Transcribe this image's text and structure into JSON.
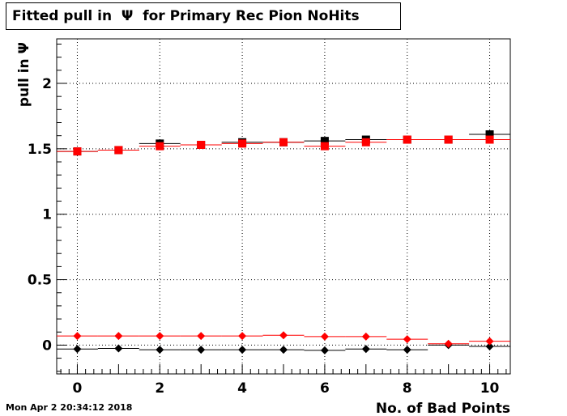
{
  "title": "Fitted pull in  Ψ  for Primary Rec Pion NoHits",
  "timestamp": "Mon Apr  2 20:34:12 2018",
  "chart_data": {
    "type": "scatter",
    "title": "Fitted pull in  Ψ  for Primary Rec Pion NoHits",
    "xlabel": "No. of Bad Points",
    "ylabel": "pull in  Ψ",
    "xlim": [
      -0.5,
      10.5
    ],
    "ylim": [
      -0.22,
      2.34
    ],
    "grid": true,
    "x_ticks": [
      0,
      2,
      4,
      6,
      8,
      10
    ],
    "y_ticks": [
      0,
      0.5,
      1,
      1.5,
      2
    ],
    "x_tick_labels": [
      "0",
      "2",
      "4",
      "6",
      "8",
      "10"
    ],
    "y_tick_labels": [
      "0",
      "0.5",
      "1",
      "1.5",
      "2"
    ],
    "x": [
      0,
      1,
      2,
      3,
      4,
      5,
      6,
      7,
      8,
      9,
      10
    ],
    "series": [
      {
        "marker": "square",
        "color": "#000000",
        "values": [
          1.48,
          1.49,
          1.54,
          1.53,
          1.55,
          1.55,
          1.56,
          1.57,
          1.57,
          1.57,
          1.61
        ]
      },
      {
        "marker": "square",
        "color": "#ff0000",
        "values": [
          1.48,
          1.49,
          1.52,
          1.53,
          1.54,
          1.55,
          1.52,
          1.55,
          1.57,
          1.57,
          1.57
        ]
      },
      {
        "marker": "diamond",
        "color": "#000000",
        "values": [
          -0.03,
          -0.025,
          -0.035,
          -0.035,
          -0.035,
          -0.035,
          -0.04,
          -0.03,
          -0.035,
          0.0,
          -0.01
        ]
      },
      {
        "marker": "diamond",
        "color": "#ff0000",
        "values": [
          0.07,
          0.07,
          0.07,
          0.07,
          0.07,
          0.075,
          0.065,
          0.065,
          0.045,
          0.01,
          0.03
        ]
      }
    ]
  }
}
